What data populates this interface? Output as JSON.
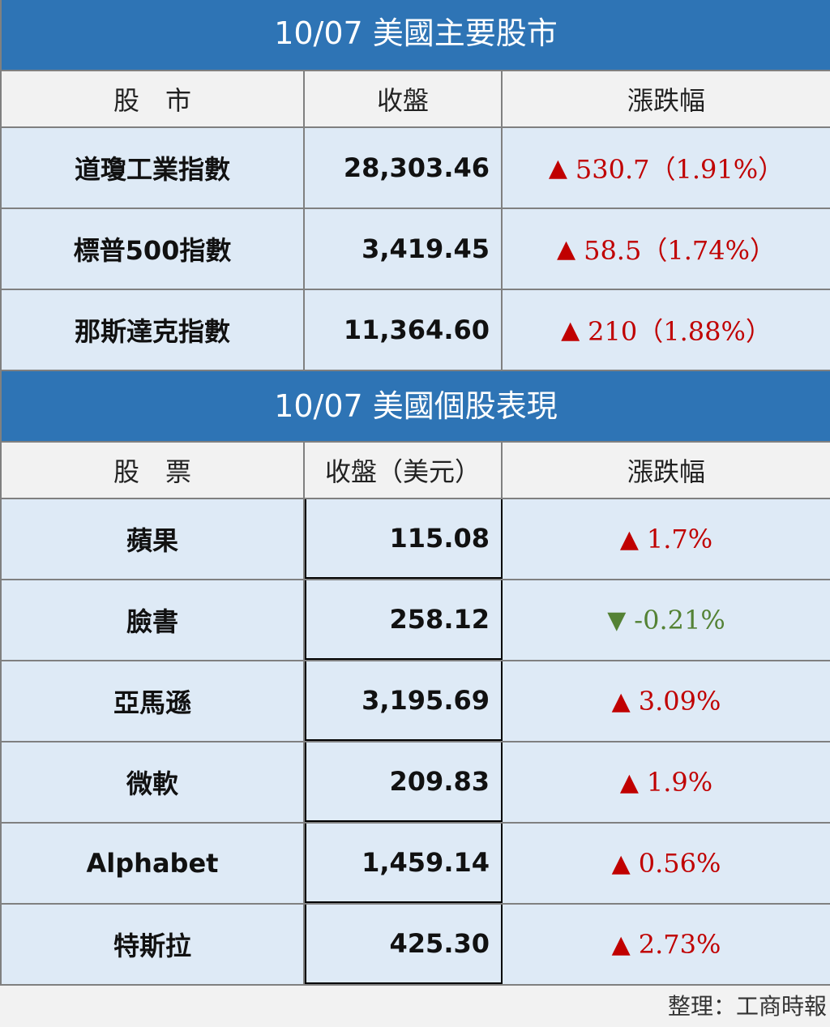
{
  "indices": {
    "title": "10/07 美國主要股市",
    "headers": [
      "股　市",
      "收盤",
      "漲跌幅"
    ],
    "rows": [
      {
        "name": "道瓊工業指數",
        "close": "28,303.46",
        "change": "530.7（1.91%）",
        "direction": "up"
      },
      {
        "name": "標普500指數",
        "close": "3,419.45",
        "change": "58.5（1.74%）",
        "direction": "up"
      },
      {
        "name": "那斯達克指數",
        "close": "11,364.60",
        "change": "210（1.88%）",
        "direction": "up"
      }
    ]
  },
  "stocks": {
    "title": "10/07 美國個股表現",
    "headers": [
      "股　票",
      "收盤（美元）",
      "漲跌幅"
    ],
    "rows": [
      {
        "name": "蘋果",
        "close": "115.08",
        "change": "1.7%",
        "direction": "up"
      },
      {
        "name": "臉書",
        "close": "258.12",
        "change": "-0.21%",
        "direction": "down"
      },
      {
        "name": "亞馬遜",
        "close": "3,195.69",
        "change": "3.09%",
        "direction": "up"
      },
      {
        "name": "微軟",
        "close": "209.83",
        "change": "1.9%",
        "direction": "up"
      },
      {
        "name": "Alphabet",
        "close": "1,459.14",
        "change": "0.56%",
        "direction": "up"
      },
      {
        "name": "特斯拉",
        "close": "425.30",
        "change": "2.73%",
        "direction": "up"
      }
    ]
  },
  "footer": "整理：工商時報",
  "colors": {
    "header_bg": "#2e74b5",
    "row_bg": "#deeaf6",
    "up": "#c00000",
    "down": "#548235"
  }
}
